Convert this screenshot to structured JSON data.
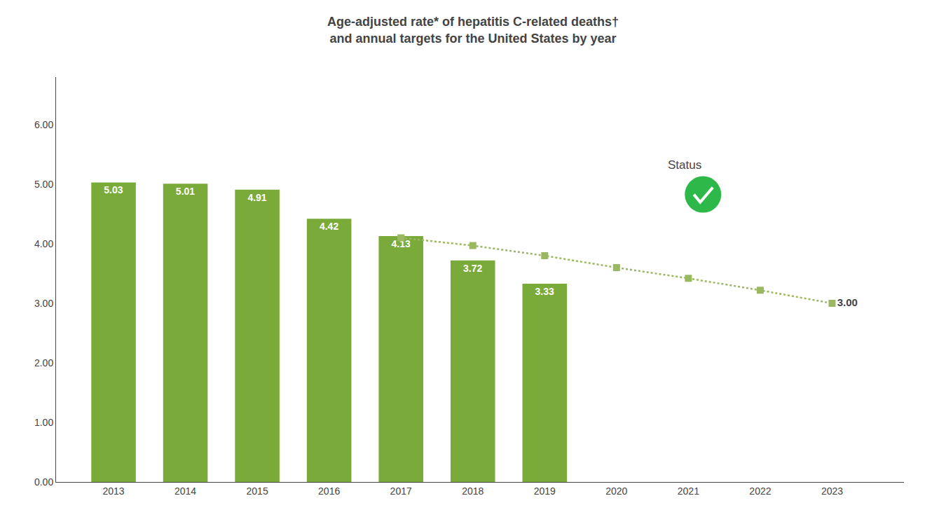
{
  "chart_data": {
    "type": "bar",
    "title": "Age-adjusted rate* of hepatitis C-related deaths†",
    "subtitle": "and annual targets for the United States by year",
    "series": [
      {
        "type": "bar",
        "color": "#7aab3a",
        "data_labels": true,
        "x": [
          2013,
          2014,
          2015,
          2016,
          2017,
          2018,
          2019
        ],
        "values": [
          5.03,
          5.01,
          4.91,
          4.42,
          4.13,
          3.72,
          3.33
        ]
      },
      {
        "type": "line",
        "color": "#9ab860",
        "marker": "square",
        "line_style": "dotted",
        "x": [
          2017,
          2018,
          2019,
          2020,
          2021,
          2022,
          2023
        ],
        "values": [
          4.1,
          3.97,
          3.8,
          3.6,
          3.42,
          3.22,
          3.0
        ],
        "value_labels": [
          null,
          null,
          null,
          null,
          null,
          null,
          "3.00"
        ]
      }
    ],
    "xlim": [
      2012.2,
      2024.0
    ],
    "xticks": [
      2013,
      2014,
      2015,
      2016,
      2017,
      2018,
      2019,
      2020,
      2021,
      2022,
      2023
    ],
    "ylim": [
      0,
      6.8
    ],
    "yticks": [
      {
        "value": 0.0,
        "label": "0.00"
      },
      {
        "value": 1.0,
        "label": "1.00"
      },
      {
        "value": 2.0,
        "label": "2.00"
      },
      {
        "value": 3.0,
        "label": "3.00"
      },
      {
        "value": 4.0,
        "label": "4.00"
      },
      {
        "value": 5.0,
        "label": "5.00"
      },
      {
        "value": 6.0,
        "label": "6.00"
      }
    ],
    "grid": false,
    "annotations": [
      {
        "text": "Status",
        "color": "#2eb84a"
      }
    ]
  }
}
